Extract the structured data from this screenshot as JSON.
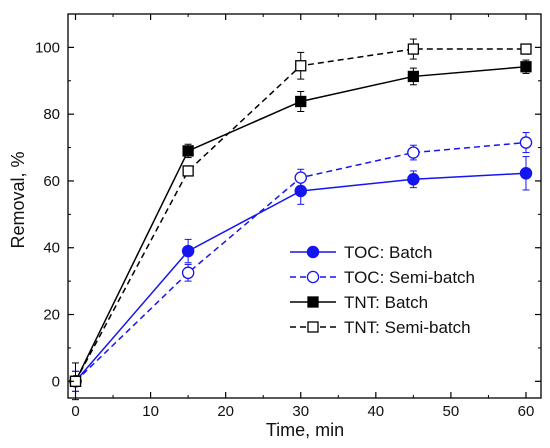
{
  "chart_data": {
    "type": "line",
    "xlabel": "Time, min",
    "ylabel": "Removal, %",
    "xlim": [
      -1,
      62
    ],
    "ylim": [
      -5,
      110
    ],
    "xticks": [
      0,
      10,
      20,
      30,
      40,
      50,
      60
    ],
    "yticks": [
      0,
      20,
      40,
      60,
      80,
      100
    ],
    "x": [
      0,
      15,
      30,
      45,
      60
    ],
    "legend_position": "center-right",
    "grid": false,
    "series": [
      {
        "name": "TOC: Batch",
        "color": "#1515f0",
        "line": "solid",
        "marker": "circle-filled",
        "values": [
          0,
          39,
          57,
          60.5,
          62.3
        ],
        "errors": [
          3,
          3.5,
          4,
          2.5,
          5
        ]
      },
      {
        "name": "TOC: Semi-batch",
        "color": "#1515f0",
        "line": "dashed",
        "marker": "circle-open",
        "values": [
          0,
          32.5,
          61,
          68.5,
          71.5
        ],
        "errors": [
          3,
          2.5,
          2.5,
          2.2,
          3
        ]
      },
      {
        "name": "TNT: Batch",
        "color": "#000000",
        "line": "solid",
        "marker": "square-filled",
        "values": [
          0,
          69,
          83.8,
          91.3,
          94.2
        ],
        "errors": [
          5.5,
          2,
          3,
          2.5,
          2
        ]
      },
      {
        "name": "TNT: Semi-batch",
        "color": "#000000",
        "line": "dashed",
        "marker": "square-open",
        "values": [
          0,
          63,
          94.5,
          99.5,
          99.5
        ],
        "errors": [
          1.5,
          1.5,
          4,
          3,
          1.5
        ]
      }
    ]
  }
}
